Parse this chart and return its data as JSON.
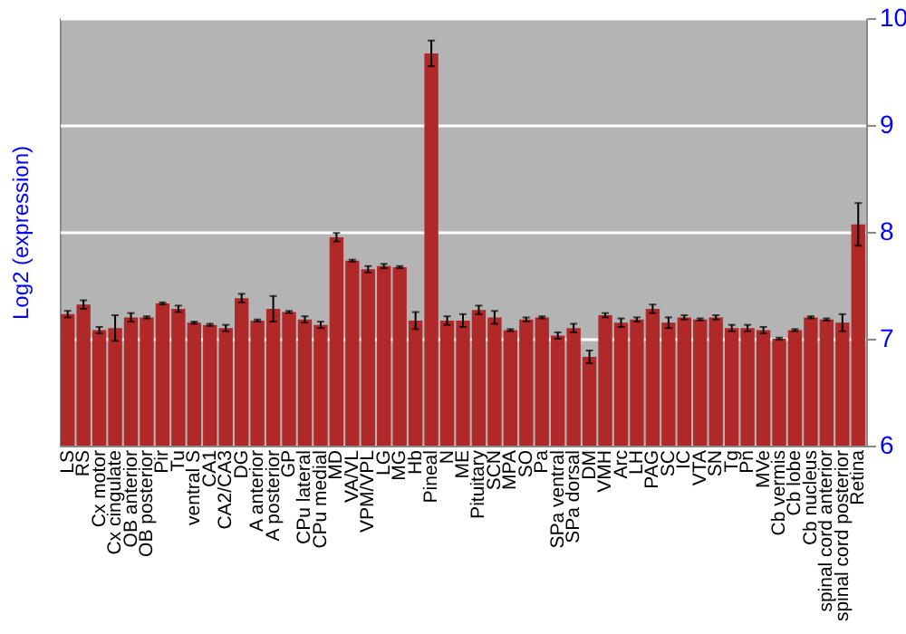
{
  "chart_data": {
    "type": "bar",
    "ylabel": "Log2 (expression)",
    "categories": [
      "LS",
      "RS",
      "Cx motor",
      "Cx cingulate",
      "OB anterior",
      "OB posterior",
      "Pir",
      "Tu",
      "ventral S",
      "CA1",
      "CA2/CA3",
      "DG",
      "A anterior",
      "A posterior",
      "GP",
      "CPu lateral",
      "CPu medial",
      "MD",
      "VA/VL",
      "VPM/VPL",
      "LG",
      "MG",
      "Hb",
      "Pineal",
      "N",
      "ME",
      "Pituitary",
      "SCN",
      "MPA",
      "SO",
      "Pa",
      "SPa ventral",
      "SPa dorsal",
      "DM",
      "VMH",
      "Arc",
      "LH",
      "PAG",
      "SC",
      "IC",
      "VTA",
      "SN",
      "Tg",
      "Pn",
      "MVe",
      "Cb vermis",
      "Cb lobe",
      "Cb nucleus",
      "spinal cord anterior",
      "spinal cord posterior",
      "Retina"
    ],
    "values": [
      7.23,
      7.32,
      7.08,
      7.1,
      7.2,
      7.2,
      7.33,
      7.28,
      7.15,
      7.13,
      7.1,
      7.38,
      7.17,
      7.28,
      7.25,
      7.18,
      7.13,
      7.95,
      7.73,
      7.65,
      7.68,
      7.67,
      7.17,
      9.67,
      7.17,
      7.17,
      7.27,
      7.2,
      7.08,
      7.18,
      7.2,
      7.03,
      7.1,
      6.83,
      7.22,
      7.15,
      7.18,
      7.28,
      7.15,
      7.2,
      7.18,
      7.2,
      7.1,
      7.1,
      7.08,
      7.0,
      7.08,
      7.2,
      7.18,
      7.15,
      8.07
    ],
    "errors": [
      0.03,
      0.04,
      0.03,
      0.12,
      0.04,
      0.01,
      0.01,
      0.03,
      0.01,
      0.01,
      0.03,
      0.04,
      0.01,
      0.12,
      0.01,
      0.03,
      0.03,
      0.04,
      0.01,
      0.03,
      0.02,
      0.01,
      0.08,
      0.12,
      0.04,
      0.06,
      0.04,
      0.06,
      0.01,
      0.02,
      0.01,
      0.03,
      0.04,
      0.06,
      0.02,
      0.04,
      0.02,
      0.04,
      0.05,
      0.02,
      0.01,
      0.02,
      0.03,
      0.03,
      0.03,
      0.01,
      0.01,
      0.01,
      0.01,
      0.08,
      0.2
    ],
    "color": "#b02828",
    "ylim": [
      6,
      10
    ],
    "yticks": [
      6,
      7,
      8,
      9,
      10
    ],
    "grid": "y"
  }
}
